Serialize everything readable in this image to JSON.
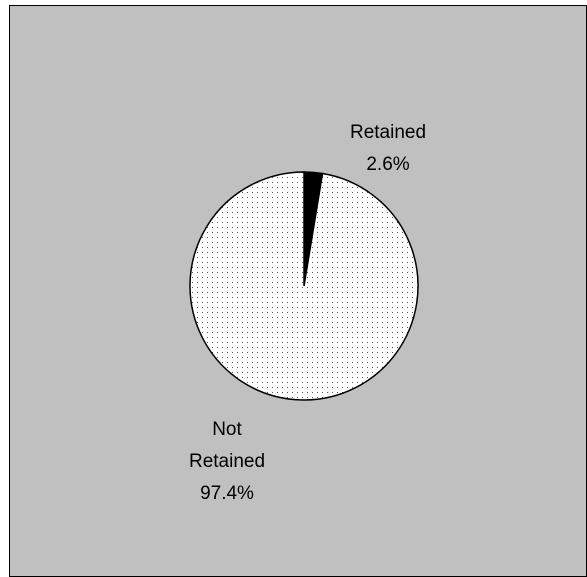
{
  "chart_data": {
    "type": "pie",
    "categories": [
      "Retained",
      "Not Retained"
    ],
    "values": [
      2.6,
      97.4
    ],
    "value_labels": [
      "2.6%",
      "97.4%"
    ],
    "colors": [
      "#000000",
      "#ffffff"
    ]
  }
}
